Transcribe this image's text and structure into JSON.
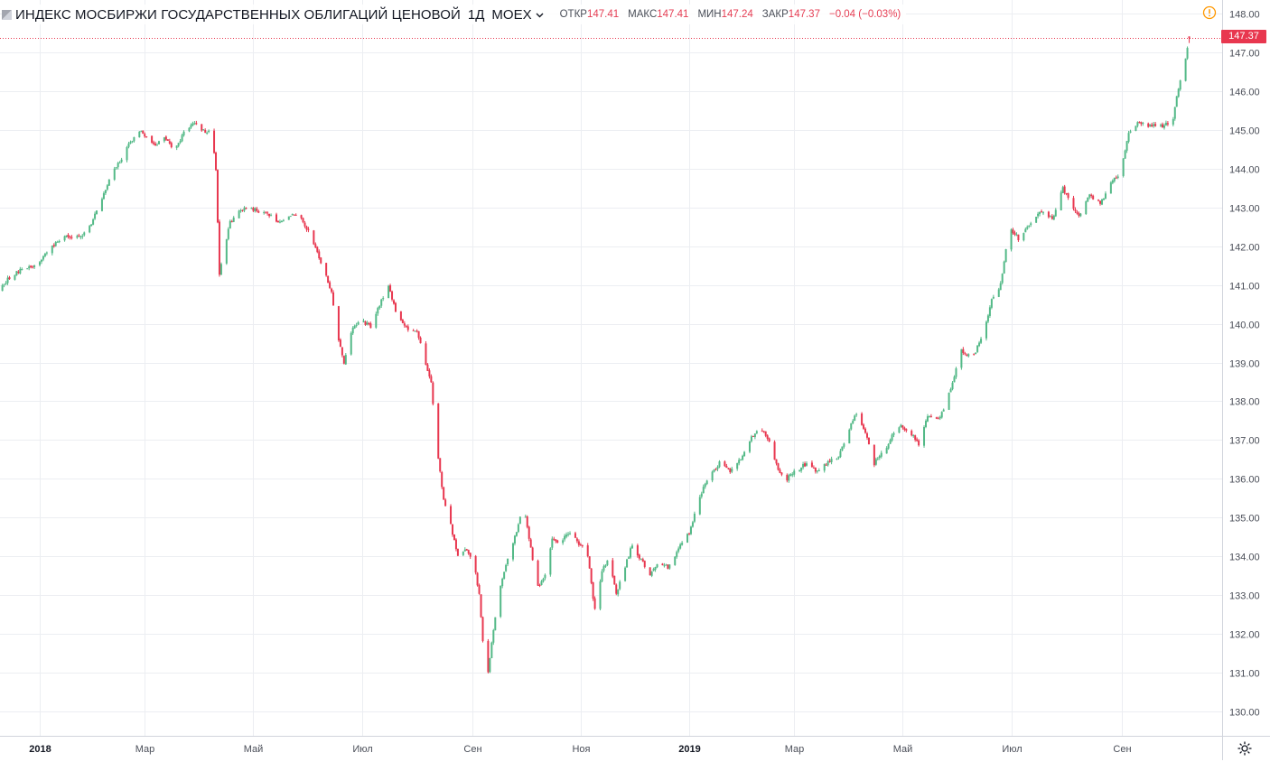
{
  "header": {
    "title": "ИНДЕКС МОСБИРЖИ ГОСУДАРСТВЕННЫХ ОБЛИГАЦИЙ ЦЕНОВОЙ",
    "interval": "1Д",
    "exchange": "MOEX",
    "open_label": "ОТКР",
    "open_value": "147.41",
    "high_label": "МАКС",
    "high_value": "147.41",
    "low_label": "МИН",
    "low_value": "147.24",
    "close_label": "ЗАКР",
    "close_value": "147.37",
    "change": "−0.04 (−0.03%)"
  },
  "last_price_label": "147.37",
  "icons": {
    "alert": "alert-clock-icon",
    "dropdown": "chevron-down-icon",
    "settings": "gear-icon"
  },
  "colors": {
    "up": "#53b987",
    "down": "#e8374f",
    "last_price": "#e8374f"
  },
  "chart_data": {
    "type": "candlestick",
    "title": "ИНДЕКС МОСБИРЖИ ГОСУДАРСТВЕННЫХ ОБЛИГАЦИЙ ЦЕНОВОЙ · 1Д · MOEX",
    "x_range": [
      "2017-12-01",
      "2019-10-31"
    ],
    "ylim": [
      129.85,
      148.1
    ],
    "y_ticks": [
      "130.00",
      "131.00",
      "132.00",
      "133.00",
      "134.00",
      "135.00",
      "136.00",
      "137.00",
      "138.00",
      "139.00",
      "140.00",
      "141.00",
      "142.00",
      "143.00",
      "144.00",
      "145.00",
      "146.00",
      "147.00",
      "148.00"
    ],
    "x_ticks": [
      {
        "date": "2018-01-01",
        "label": "2018",
        "year": true
      },
      {
        "date": "2018-03-01",
        "label": "Мар"
      },
      {
        "date": "2018-05-01",
        "label": "Май"
      },
      {
        "date": "2018-07-01",
        "label": "Июл"
      },
      {
        "date": "2018-09-01",
        "label": "Сен"
      },
      {
        "date": "2018-11-01",
        "label": "Ноя"
      },
      {
        "date": "2019-01-01",
        "label": "2019",
        "year": true
      },
      {
        "date": "2019-03-01",
        "label": "Мар"
      },
      {
        "date": "2019-05-01",
        "label": "Май"
      },
      {
        "date": "2019-07-01",
        "label": "Июл"
      },
      {
        "date": "2019-09-01",
        "label": "Сен"
      }
    ],
    "last_close": 147.37,
    "series": [
      {
        "close_path": [
          [
            "2017-12-01",
            140.7
          ],
          [
            "2017-12-08",
            140.8
          ],
          [
            "2017-12-15",
            141.2
          ],
          [
            "2017-12-22",
            141.4
          ],
          [
            "2017-12-29",
            141.5
          ],
          [
            "2018-01-05",
            141.8
          ],
          [
            "2018-01-10",
            142.1
          ],
          [
            "2018-01-15",
            142.3
          ],
          [
            "2018-01-20",
            142.2
          ],
          [
            "2018-01-25",
            142.3
          ],
          [
            "2018-01-30",
            142.6
          ],
          [
            "2018-02-05",
            143.2
          ],
          [
            "2018-02-10",
            143.8
          ],
          [
            "2018-02-15",
            144.2
          ],
          [
            "2018-02-20",
            144.6
          ],
          [
            "2018-02-26",
            145.0
          ],
          [
            "2018-03-02",
            144.8
          ],
          [
            "2018-03-07",
            144.6
          ],
          [
            "2018-03-12",
            144.8
          ],
          [
            "2018-03-18",
            144.5
          ],
          [
            "2018-03-24",
            145.0
          ],
          [
            "2018-03-28",
            145.2
          ],
          [
            "2018-04-02",
            145.0
          ],
          [
            "2018-04-08",
            144.9
          ],
          [
            "2018-04-10",
            144.0
          ],
          [
            "2018-04-12",
            141.3
          ],
          [
            "2018-04-15",
            142.0
          ],
          [
            "2018-04-18",
            142.6
          ],
          [
            "2018-04-22",
            142.9
          ],
          [
            "2018-04-28",
            143.0
          ],
          [
            "2018-05-05",
            142.9
          ],
          [
            "2018-05-10",
            142.8
          ],
          [
            "2018-05-16",
            142.6
          ],
          [
            "2018-05-22",
            142.8
          ],
          [
            "2018-05-28",
            142.7
          ],
          [
            "2018-06-02",
            142.3
          ],
          [
            "2018-06-08",
            141.6
          ],
          [
            "2018-06-14",
            140.8
          ],
          [
            "2018-06-18",
            139.6
          ],
          [
            "2018-06-21",
            139.0
          ],
          [
            "2018-06-25",
            139.8
          ],
          [
            "2018-07-01",
            140.1
          ],
          [
            "2018-07-06",
            139.9
          ],
          [
            "2018-07-12",
            140.6
          ],
          [
            "2018-07-16",
            141.0
          ],
          [
            "2018-07-20",
            140.3
          ],
          [
            "2018-07-26",
            139.9
          ],
          [
            "2018-08-01",
            139.8
          ],
          [
            "2018-08-05",
            139.1
          ],
          [
            "2018-08-09",
            138.5
          ],
          [
            "2018-08-12",
            136.8
          ],
          [
            "2018-08-16",
            135.5
          ],
          [
            "2018-08-20",
            134.8
          ],
          [
            "2018-08-24",
            134.0
          ],
          [
            "2018-08-28",
            134.2
          ],
          [
            "2018-09-02",
            133.9
          ],
          [
            "2018-09-05",
            133.0
          ],
          [
            "2018-09-09",
            130.6
          ],
          [
            "2018-09-12",
            131.8
          ],
          [
            "2018-09-16",
            133.0
          ],
          [
            "2018-09-20",
            133.8
          ],
          [
            "2018-09-25",
            134.5
          ],
          [
            "2018-09-30",
            135.3
          ],
          [
            "2018-10-04",
            134.2
          ],
          [
            "2018-10-08",
            133.2
          ],
          [
            "2018-10-12",
            133.5
          ],
          [
            "2018-10-16",
            134.5
          ],
          [
            "2018-10-20",
            134.3
          ],
          [
            "2018-10-25",
            134.6
          ],
          [
            "2018-11-01",
            134.3
          ],
          [
            "2018-11-05",
            134.0
          ],
          [
            "2018-11-09",
            132.6
          ],
          [
            "2018-11-13",
            133.6
          ],
          [
            "2018-11-17",
            134.0
          ],
          [
            "2018-11-21",
            133.0
          ],
          [
            "2018-11-25",
            133.6
          ],
          [
            "2018-11-30",
            134.3
          ],
          [
            "2018-12-05",
            133.9
          ],
          [
            "2018-12-10",
            133.5
          ],
          [
            "2018-12-15",
            133.9
          ],
          [
            "2018-12-20",
            133.7
          ],
          [
            "2018-12-26",
            134.2
          ],
          [
            "2019-01-01",
            134.6
          ],
          [
            "2019-01-06",
            135.4
          ],
          [
            "2019-01-12",
            136.1
          ],
          [
            "2019-01-18",
            136.4
          ],
          [
            "2019-01-24",
            136.2
          ],
          [
            "2019-01-30",
            136.5
          ],
          [
            "2019-02-05",
            137.1
          ],
          [
            "2019-02-10",
            137.3
          ],
          [
            "2019-02-15",
            137.0
          ],
          [
            "2019-02-20",
            136.2
          ],
          [
            "2019-02-25",
            136.0
          ],
          [
            "2019-03-02",
            136.2
          ],
          [
            "2019-03-08",
            136.4
          ],
          [
            "2019-03-14",
            136.2
          ],
          [
            "2019-03-20",
            136.4
          ],
          [
            "2019-03-26",
            136.6
          ],
          [
            "2019-04-01",
            137.3
          ],
          [
            "2019-04-05",
            137.7
          ],
          [
            "2019-04-10",
            137.2
          ],
          [
            "2019-04-15",
            136.4
          ],
          [
            "2019-04-22",
            136.8
          ],
          [
            "2019-04-28",
            137.4
          ],
          [
            "2019-05-05",
            137.2
          ],
          [
            "2019-05-10",
            136.9
          ],
          [
            "2019-05-15",
            137.6
          ],
          [
            "2019-05-22",
            137.6
          ],
          [
            "2019-05-28",
            138.3
          ],
          [
            "2019-06-03",
            139.3
          ],
          [
            "2019-06-09",
            139.1
          ],
          [
            "2019-06-15",
            139.7
          ],
          [
            "2019-06-20",
            140.6
          ],
          [
            "2019-06-25",
            141.0
          ],
          [
            "2019-06-30",
            142.5
          ],
          [
            "2019-07-05",
            142.2
          ],
          [
            "2019-07-12",
            142.6
          ],
          [
            "2019-07-18",
            142.9
          ],
          [
            "2019-07-24",
            142.7
          ],
          [
            "2019-07-30",
            143.5
          ],
          [
            "2019-08-04",
            143.0
          ],
          [
            "2019-08-08",
            142.8
          ],
          [
            "2019-08-14",
            143.3
          ],
          [
            "2019-08-20",
            143.1
          ],
          [
            "2019-08-26",
            143.6
          ],
          [
            "2019-08-31",
            143.9
          ],
          [
            "2019-09-05",
            144.9
          ],
          [
            "2019-09-10",
            145.2
          ],
          [
            "2019-09-15",
            145.1
          ],
          [
            "2019-09-20",
            145.1
          ],
          [
            "2019-09-25",
            145.1
          ],
          [
            "2019-09-30",
            145.3
          ],
          [
            "2019-10-03",
            146.1
          ],
          [
            "2019-10-07",
            146.8
          ],
          [
            "2019-10-09",
            147.37
          ]
        ]
      }
    ]
  }
}
